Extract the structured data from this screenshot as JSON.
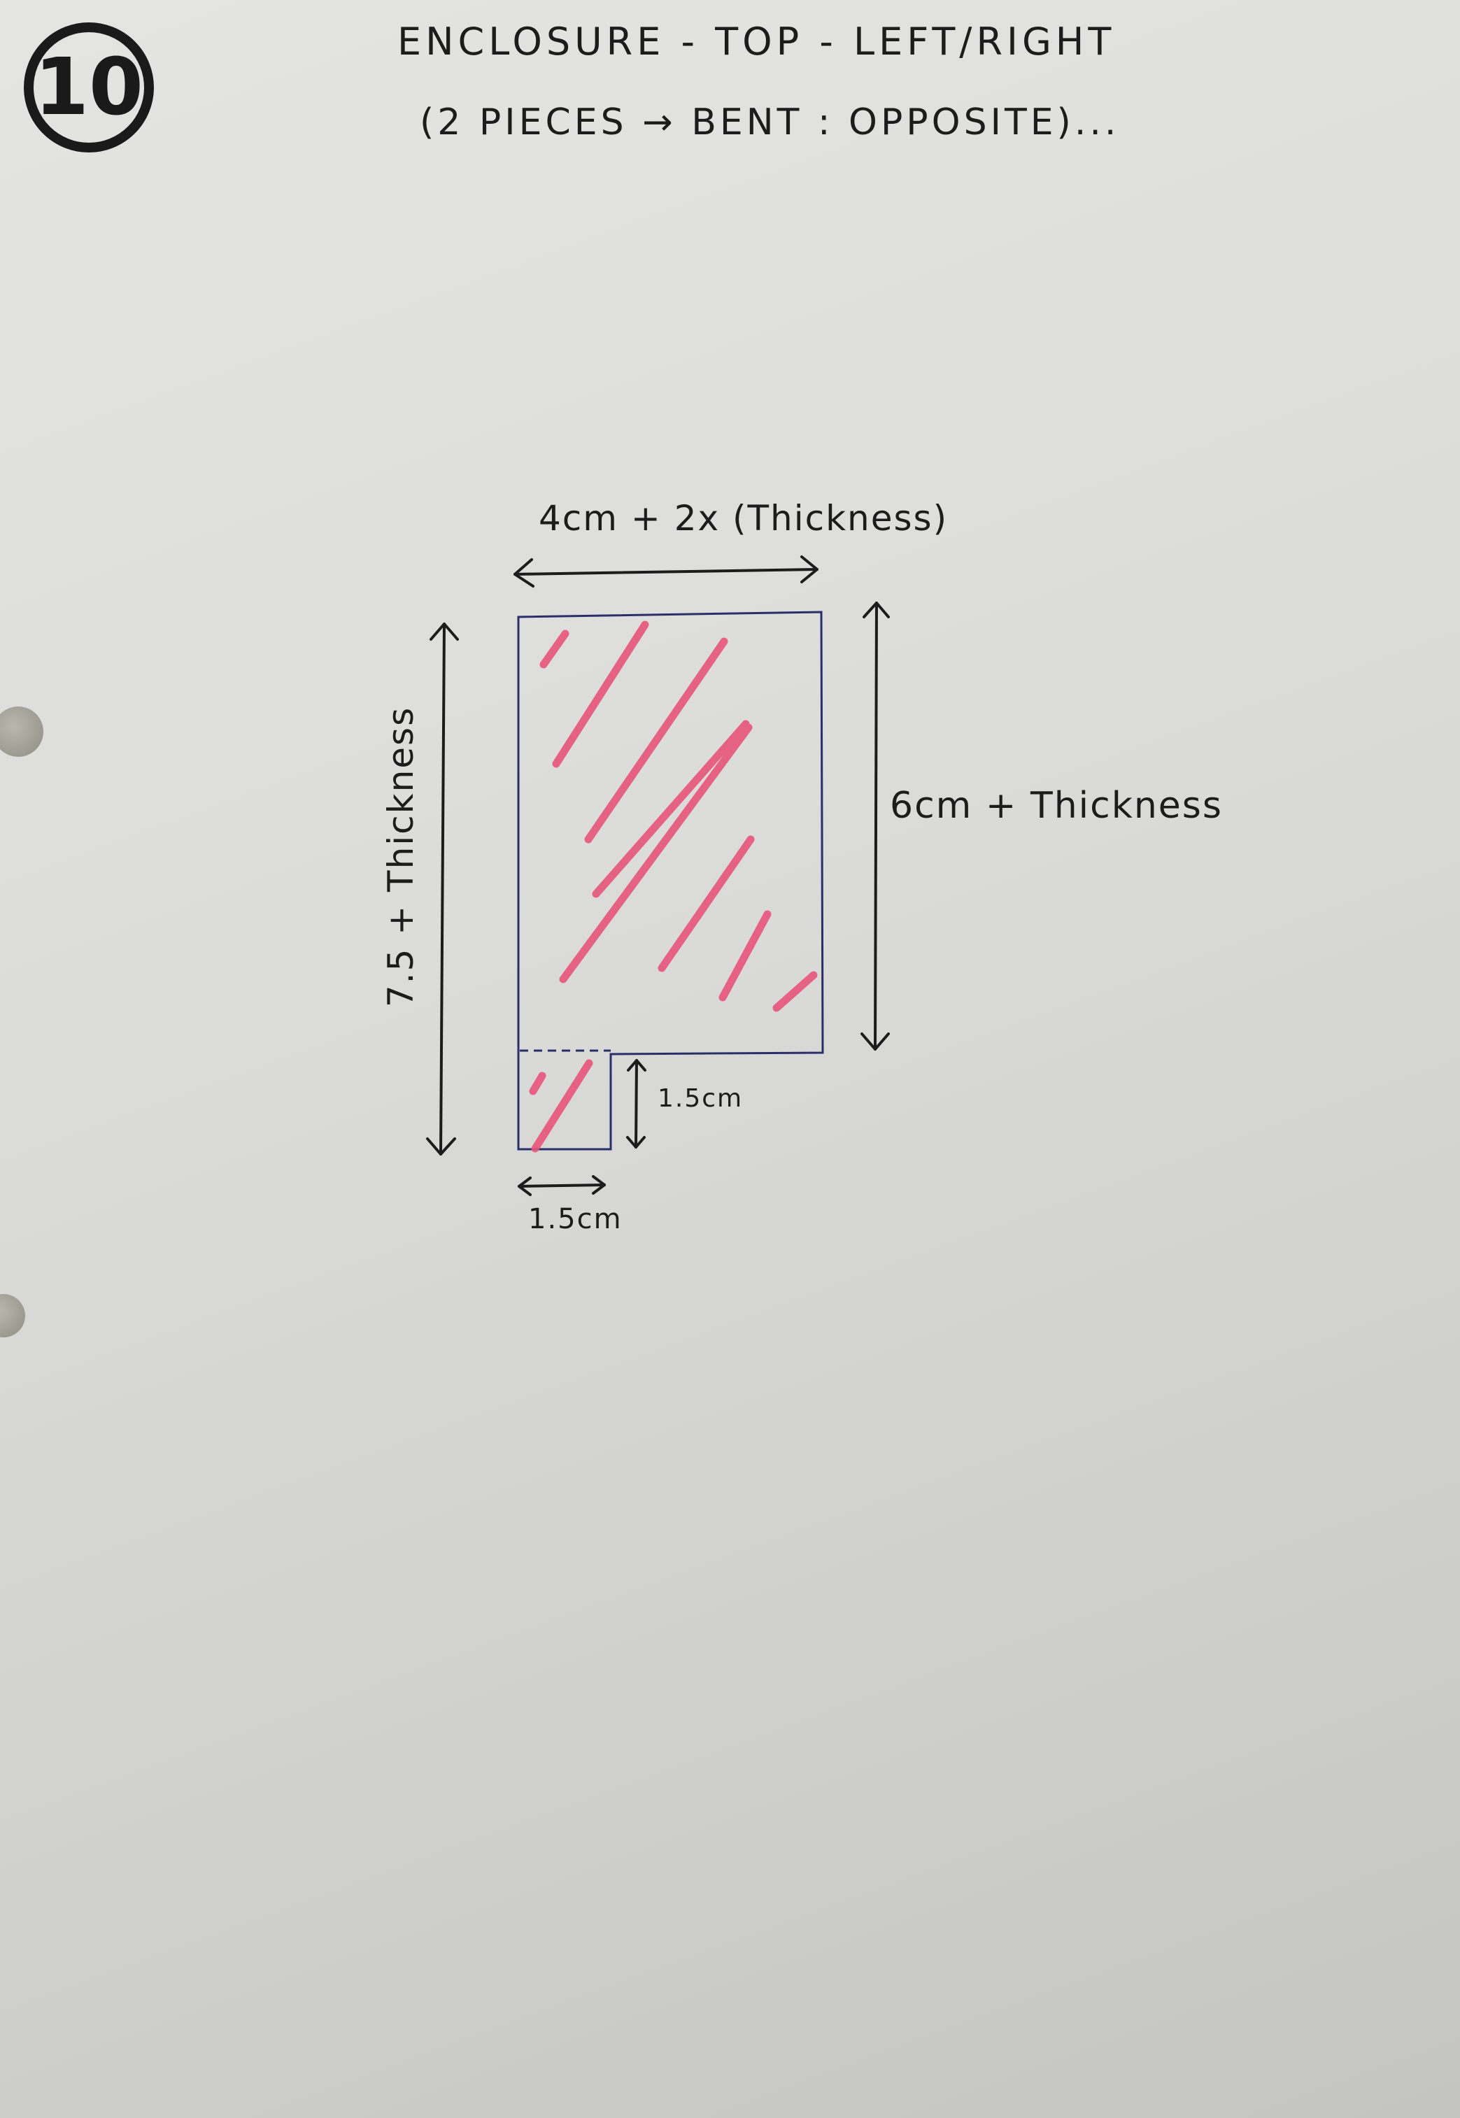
{
  "page": {
    "number": "10",
    "title": "ENCLOSURE - TOP - LEFT/RIGHT",
    "subtitle": "(2 PIECES → BENT : OPPOSITE)..."
  },
  "diagram": {
    "width_label": "4cm + 2x (Thickness)",
    "right_height_label": "6cm + Thickness",
    "left_height_label": "7.5 + Thickness",
    "tab_height_label": "1.5cm",
    "tab_width_label": "1.5cm"
  },
  "colors": {
    "ink": "#1c1c1c",
    "outline": "#2a2f6a",
    "hatch": "#e8557a",
    "paper": "#e0e0de"
  }
}
